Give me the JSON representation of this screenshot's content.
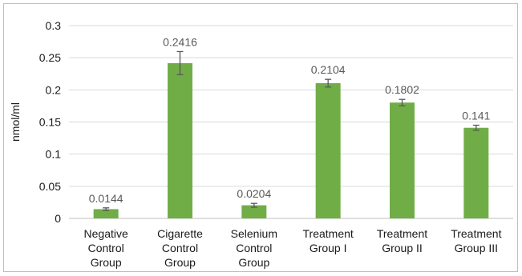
{
  "chart_data": {
    "type": "bar",
    "title": "",
    "xlabel": "",
    "ylabel": "nmol/ml",
    "ylim": [
      0,
      0.3
    ],
    "yticks": [
      "0",
      "0.05",
      "0.1",
      "0.15",
      "0.2",
      "0.25",
      "0.3"
    ],
    "ytick_values": [
      0,
      0.05,
      0.1,
      0.15,
      0.2,
      0.25,
      0.3
    ],
    "grid": true,
    "legend": "none",
    "categories": [
      [
        "Negative",
        "Control",
        "Group"
      ],
      [
        "Cigarette",
        "Control",
        "Group"
      ],
      [
        "Selenium",
        "Control",
        "Group"
      ],
      [
        "Treatment",
        "Group I"
      ],
      [
        "Treatment",
        "Group II"
      ],
      [
        "Treatment",
        "Group III"
      ]
    ],
    "values": [
      0.0144,
      0.2416,
      0.0204,
      0.2104,
      0.1802,
      0.141
    ],
    "data_labels": [
      "0.0144",
      "0.2416",
      "0.0204",
      "0.2104",
      "0.1802",
      "0.141"
    ],
    "error": [
      0.002,
      0.018,
      0.003,
      0.006,
      0.005,
      0.004
    ],
    "colors": {
      "bar": "#70ad47",
      "error_bar": "#595959",
      "grid": "#d9d9d9",
      "axis": "#bfbfbf"
    }
  }
}
